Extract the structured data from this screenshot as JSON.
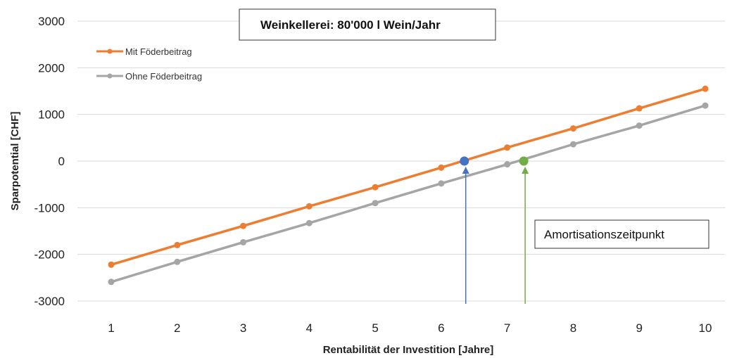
{
  "chart_data": {
    "type": "line",
    "title": "Weinkellerei: 80'000 l Wein/Jahr",
    "xlabel": "Rentabilität der Investition [Jahre]",
    "ylabel": "Sparpotential [CHF]",
    "x": [
      1,
      2,
      3,
      4,
      5,
      6,
      7,
      8,
      9,
      10
    ],
    "xlim": [
      0.5,
      10.5
    ],
    "ylim": [
      -3000,
      3000
    ],
    "yticks": [
      -3000,
      -2000,
      -1000,
      0,
      1000,
      2000,
      3000
    ],
    "grid": "horizontal",
    "legend_position": "top-left",
    "series": [
      {
        "name": "Mit Föderbeitrag",
        "color": "#ED7D31",
        "values": [
          -2220,
          -1800,
          -1390,
          -970,
          -560,
          -140,
          290,
          700,
          1130,
          1550
        ]
      },
      {
        "name": "Ohne Föderbeitrag",
        "color": "#A5A5A5",
        "values": [
          -2590,
          -2160,
          -1740,
          -1330,
          -900,
          -480,
          -70,
          360,
          760,
          1190
        ]
      }
    ],
    "break_even_markers": [
      {
        "x": 6.35,
        "y": 0,
        "color": "#4472C4"
      },
      {
        "x": 7.25,
        "y": 0,
        "color": "#70AD47"
      }
    ],
    "annotation": "Amortisationszeitpunkt"
  }
}
